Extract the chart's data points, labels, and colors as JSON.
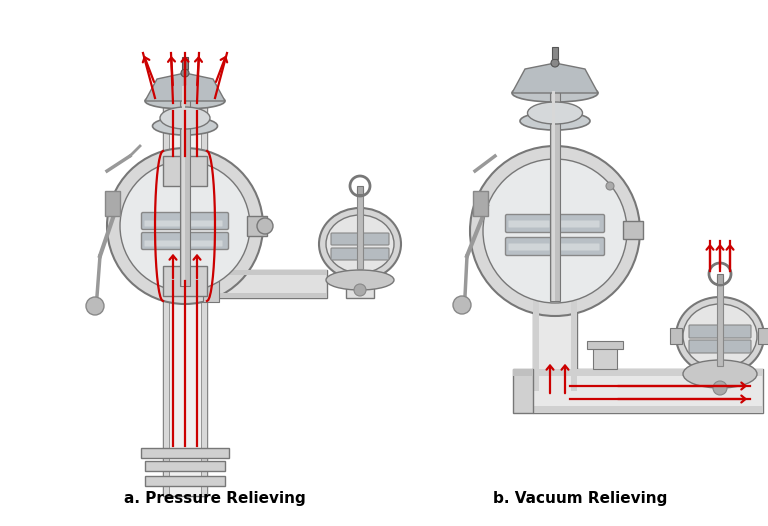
{
  "background_color": "#ffffff",
  "label_a": "a. Pressure Relieving",
  "label_b": "b. Vacuum Relieving",
  "label_fontsize": 11,
  "arrow_color": "#cc0000",
  "light_gray": "#e8e8e8",
  "mid_gray": "#c8c8c8",
  "dark_gray": "#999999",
  "darker_gray": "#666666",
  "edge_color": "#777777",
  "steel_color": "#b0b8c0",
  "fig_width": 7.68,
  "fig_height": 5.26
}
